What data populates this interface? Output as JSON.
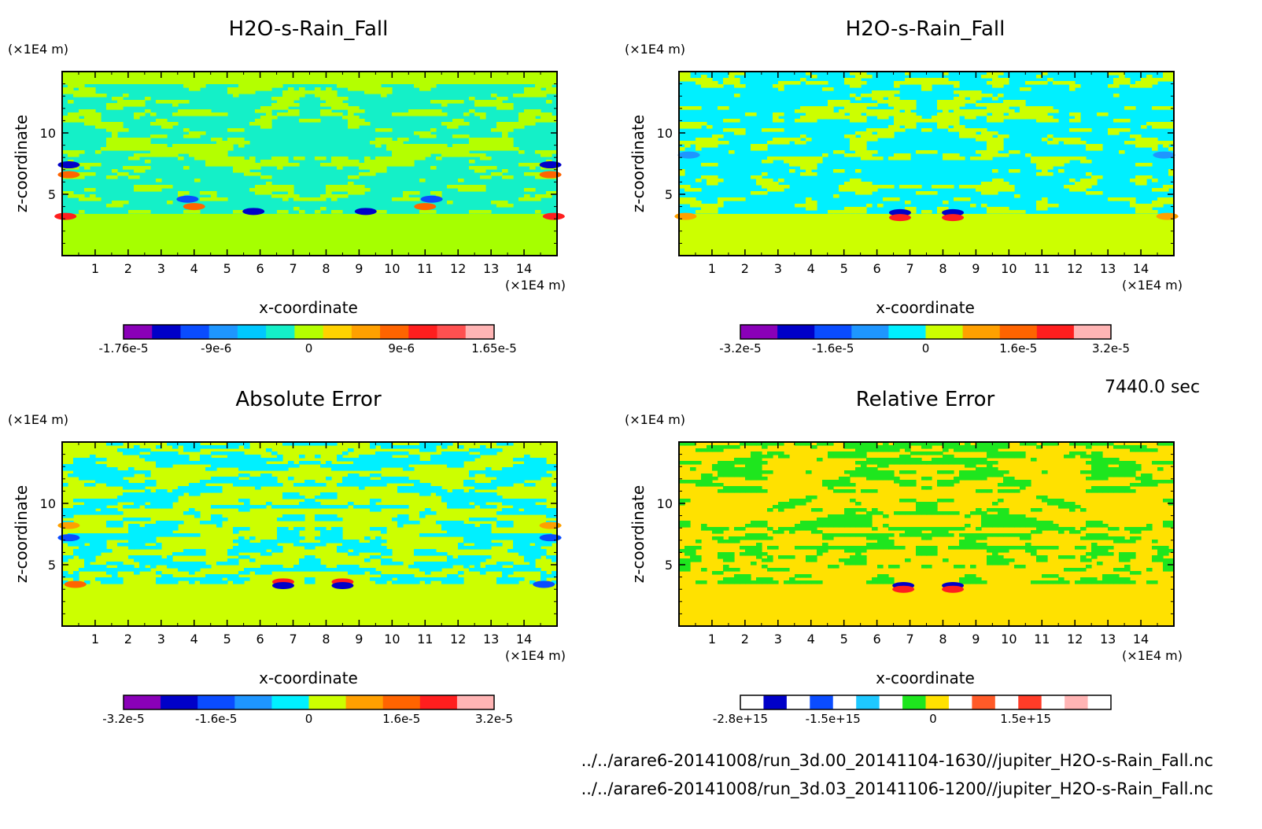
{
  "time_label": "7440.0 sec",
  "files": [
    "../../arare6-20141008/run_3d.00_20141104-1630//jupiter_H2O-s-Rain_Fall.nc",
    "../../arare6-20141008/run_3d.03_20141106-1200//jupiter_H2O-s-Rain_Fall.nc"
  ],
  "chart_data": [
    {
      "type": "heatmap",
      "title": "H2O-s-Rain_Fall",
      "xlabel": "x-coordinate",
      "ylabel": "z-coordinate",
      "x_unit": "(×1E4 m)",
      "y_unit": "(×1E4 m)",
      "xlim": [
        0,
        15
      ],
      "ylim": [
        0,
        15
      ],
      "x_ticks": [
        1,
        2,
        3,
        4,
        5,
        6,
        7,
        8,
        9,
        10,
        11,
        12,
        13,
        14
      ],
      "y_ticks": [
        5,
        10
      ],
      "colorbar": {
        "colors": [
          "#8a00b8",
          "#0000c8",
          "#0a4cff",
          "#1e96ff",
          "#00c8ff",
          "#14f0c8",
          "#b4ff00",
          "#ffd200",
          "#ffa000",
          "#ff6400",
          "#ff1e1e",
          "#ff5050",
          "#ffb4b4"
        ],
        "tick_labels": [
          "-1.76e-5",
          "-9e-6",
          "0",
          "9e-6",
          "1.65e-5"
        ]
      }
    },
    {
      "type": "heatmap",
      "title": "H2O-s-Rain_Fall",
      "xlabel": "x-coordinate",
      "ylabel": "z-coordinate",
      "x_unit": "(×1E4 m)",
      "y_unit": "(×1E4 m)",
      "xlim": [
        0,
        15
      ],
      "ylim": [
        0,
        15
      ],
      "x_ticks": [
        1,
        2,
        3,
        4,
        5,
        6,
        7,
        8,
        9,
        10,
        11,
        12,
        13,
        14
      ],
      "y_ticks": [
        5,
        10
      ],
      "colorbar": {
        "colors": [
          "#8a00b8",
          "#0000c8",
          "#0a4cff",
          "#1e96ff",
          "#00f0ff",
          "#ccff00",
          "#ffa000",
          "#ff6400",
          "#ff1e1e",
          "#ffb4b4"
        ],
        "tick_labels": [
          "-3.2e-5",
          "-1.6e-5",
          "0",
          "1.6e-5",
          "3.2e-5"
        ]
      }
    },
    {
      "type": "heatmap",
      "title": "Absolute Error",
      "xlabel": "x-coordinate",
      "ylabel": "z-coordinate",
      "x_unit": "(×1E4 m)",
      "y_unit": "(×1E4 m)",
      "xlim": [
        0,
        15
      ],
      "ylim": [
        0,
        15
      ],
      "x_ticks": [
        1,
        2,
        3,
        4,
        5,
        6,
        7,
        8,
        9,
        10,
        11,
        12,
        13,
        14
      ],
      "y_ticks": [
        5,
        10
      ],
      "colorbar": {
        "colors": [
          "#8a00b8",
          "#0000c8",
          "#0a4cff",
          "#1e96ff",
          "#00f0ff",
          "#ccff00",
          "#ffa000",
          "#ff6400",
          "#ff1e1e",
          "#ffb4b4"
        ],
        "tick_labels": [
          "-3.2e-5",
          "-1.6e-5",
          "0",
          "1.6e-5",
          "3.2e-5"
        ]
      }
    },
    {
      "type": "heatmap",
      "title": "Relative Error",
      "xlabel": "x-coordinate",
      "ylabel": "z-coordinate",
      "x_unit": "(×1E4 m)",
      "y_unit": "(×1E4 m)",
      "xlim": [
        0,
        15
      ],
      "ylim": [
        0,
        15
      ],
      "x_ticks": [
        1,
        2,
        3,
        4,
        5,
        6,
        7,
        8,
        9,
        10,
        11,
        12,
        13,
        14
      ],
      "y_ticks": [
        5,
        10
      ],
      "colorbar": {
        "colors": [
          "#ffffff",
          "#0000c8",
          "#ffffff",
          "#0a4cff",
          "#ffffff",
          "#1ec8ff",
          "#ffffff",
          "#1ee61e",
          "#ffe100",
          "#ffffff",
          "#ff5a28",
          "#ffffff",
          "#ff3c28",
          "#ffffff",
          "#ffb4b4",
          "#ffffff"
        ],
        "tick_labels": [
          "-2.8e+15",
          "-1.5e+15",
          "0",
          "1.5e+15"
        ]
      }
    }
  ]
}
